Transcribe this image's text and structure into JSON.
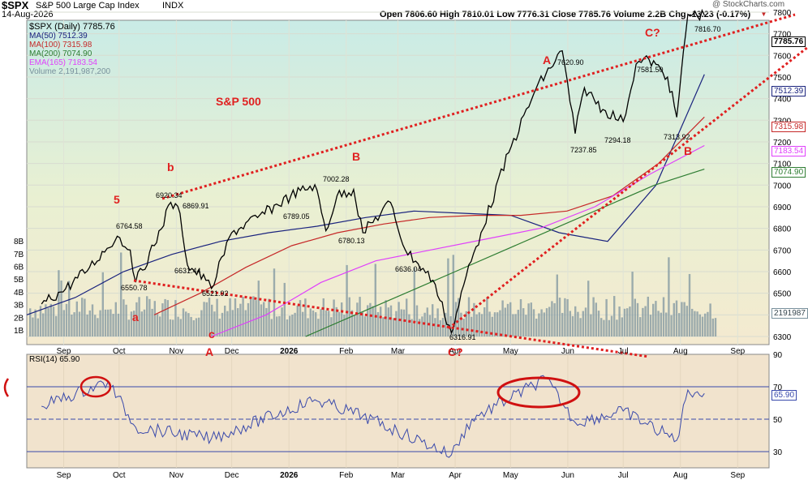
{
  "header": {
    "symbol": "$SPX",
    "name": "S&P 500 Large Cap Index",
    "exchange": "INDX",
    "date": "14-Aug-2026",
    "ohlc": "Open 7806.60  High 7810.01  Low 7776.31  Close 7785.76  Volume 2.2B  Chg -13.23 (-0.17%)",
    "down_arrow": "▼",
    "watermark": "@ StockCharts.com"
  },
  "legend": {
    "price": "$SPX (Daily) 7785.76",
    "ma50": "MA(50) 7512.39",
    "ma100": "MA(100) 7315.98",
    "ma200": "MA(200) 7074.90",
    "ema165": "EMA(165) 7183.54",
    "volume": "Volume 2,191,987,200"
  },
  "annotations": {
    "title": "S&P 500",
    "wave5": "5",
    "waveb_small": "b",
    "wavea_small": "a",
    "wavec_small": "c",
    "waveA_low": "A",
    "waveB_mid": "B",
    "waveA_top": "A",
    "waveC_top": "C?",
    "waveC_low": "C?",
    "waveB_right": "B",
    "p6764": "6764.58",
    "p6920": "6920.34",
    "p6869": "6869.91",
    "p6631": "6631.44",
    "p6550": "6550.78",
    "p6521": "6521.92",
    "p7002": "7002.28",
    "p6789": "6789.05",
    "p6780": "6780.13",
    "p6636": "6636.04",
    "p6316": "6316.91",
    "p7620": "7620.90",
    "p7237": "7237.85",
    "p7581": "7581.50",
    "p7294": "7294.18",
    "p7313": "7313.92",
    "p7816": "7816.70"
  },
  "right_labels": {
    "close": "7785.76",
    "ma50": "7512.39",
    "ma100": "7315.98",
    "ema165": "7183.54",
    "ma200": "7074.90",
    "volume": "2191987"
  },
  "rsi": {
    "label": "RSI(14) 65.90",
    "value_tag": "65.90"
  },
  "colors": {
    "price": "#000000",
    "ma50": "#1a237e",
    "ma100": "#c62828",
    "ma200": "#2e7d32",
    "ema165": "#e040fb",
    "volume": "#78909c",
    "trend": "#e02020",
    "rsi": "#3949ab"
  },
  "chart_data": [
    {
      "type": "line",
      "title": "S&P 500",
      "series": [
        {
          "name": "$SPX (Daily)",
          "x": [
            "2025-08-20",
            "2025-09-02",
            "2025-09-15",
            "2025-09-30",
            "2025-10-07",
            "2025-10-10",
            "2025-10-20",
            "2025-10-29",
            "2025-11-03",
            "2025-11-07",
            "2025-11-17",
            "2025-11-20",
            "2025-12-01",
            "2025-12-15",
            "2026-01-02",
            "2026-01-15",
            "2026-01-21",
            "2026-01-27",
            "2026-02-05",
            "2026-02-10",
            "2026-02-25",
            "2026-03-05",
            "2026-03-12",
            "2026-03-20",
            "2026-03-30",
            "2026-04-07",
            "2026-04-15",
            "2026-04-30",
            "2026-05-15",
            "2026-05-29",
            "2026-06-05",
            "2026-06-10",
            "2026-06-20",
            "2026-07-01",
            "2026-07-08",
            "2026-07-15",
            "2026-07-25",
            "2026-07-30",
            "2026-08-05",
            "2026-08-14"
          ],
          "values": [
            6450,
            6520,
            6620,
            6764,
            6700,
            6551,
            6720,
            6920,
            6870,
            6631,
            6560,
            6522,
            6780,
            6850,
            6950,
            7002,
            6789,
            6950,
            6980,
            6780,
            6920,
            6700,
            6636,
            6560,
            6317,
            6580,
            6780,
            7150,
            7450,
            7621,
            7238,
            7450,
            7350,
            7294,
            7560,
            7581,
            7500,
            7314,
            7790,
            7786
          ]
        },
        {
          "name": "MA(50)",
          "values": [
            6400,
            6480,
            6600,
            6680,
            6740,
            6780,
            6810,
            6850,
            6880,
            6870,
            6860,
            6780,
            6740,
            7000,
            7512
          ]
        },
        {
          "name": "MA(100)",
          "values": [
            6400,
            6500,
            6620,
            6720,
            6780,
            6820,
            6850,
            6860,
            6860,
            6880,
            6950,
            7100,
            7315
          ]
        },
        {
          "name": "MA(200)",
          "values": [
            6300,
            6400,
            6500,
            6600,
            6700,
            6800,
            6900,
            7000,
            7074
          ]
        },
        {
          "name": "EMA(165)",
          "values": [
            6300,
            6400,
            6550,
            6650,
            6700,
            6750,
            6800,
            6900,
            7050,
            7183
          ]
        }
      ],
      "yticks": [
        6300,
        6400,
        6500,
        6600,
        6700,
        6800,
        6900,
        7000,
        7100,
        7200,
        7300,
        7400,
        7500,
        7600,
        7700,
        7800
      ],
      "vol_ticks": [
        "1B",
        "2B",
        "3B",
        "4B",
        "5B",
        "6B",
        "7B",
        "8B"
      ],
      "xticks": [
        "Sep",
        "Oct",
        "Nov",
        "Dec",
        "2026",
        "Feb",
        "Mar",
        "Apr",
        "May",
        "Jun",
        "Jul",
        "Aug",
        "Sep"
      ]
    },
    {
      "type": "line",
      "title": "RSI(14)",
      "ylim": [
        20,
        90
      ],
      "yticks": [
        30,
        50,
        70,
        90
      ],
      "xticks": [
        "Sep",
        "Oct",
        "Nov",
        "Dec",
        "2026",
        "Feb",
        "Mar",
        "Apr",
        "May",
        "Jun",
        "Jul",
        "Aug",
        "Sep"
      ],
      "series": [
        {
          "name": "RSI(14)",
          "x": [
            "2025-08-20",
            "2025-09-25",
            "2025-10-10",
            "2025-11-20",
            "2026-01-15",
            "2026-02-10",
            "2026-03-30",
            "2026-04-10",
            "2026-05-20",
            "2026-06-05",
            "2026-07-01",
            "2026-07-30",
            "2026-08-05",
            "2026-08-14"
          ],
          "values": [
            58,
            73,
            45,
            38,
            62,
            52,
            28,
            50,
            75,
            48,
            55,
            37,
            68,
            65.9
          ]
        }
      ]
    }
  ]
}
